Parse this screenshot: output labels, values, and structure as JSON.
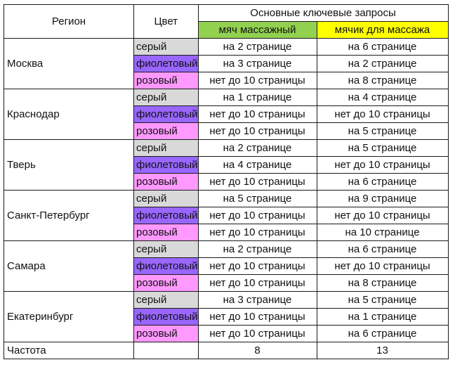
{
  "header": {
    "region_label": "Регион",
    "color_label": "Цвет",
    "queries_label": "Основные ключевые запросы",
    "kw1": "мяч массажный",
    "kw2": "мячик для массажа"
  },
  "colors": {
    "grey_swatch": "#d9d9d9",
    "violet_swatch": "#9966ff",
    "pink_swatch": "#ff99ff",
    "kw1_header": "#92d050",
    "kw2_header": "#ffff00"
  },
  "regions": [
    {
      "name": "Москва",
      "rows": [
        {
          "color": "серый",
          "kw1": "на 2 странице",
          "kw2": "на 6 странице"
        },
        {
          "color": "фиолетовый",
          "kw1": "на 3 странице",
          "kw2": "на 2 странице"
        },
        {
          "color": "розовый",
          "kw1": "нет до 10 страницы",
          "kw2": "на 8 странице"
        }
      ]
    },
    {
      "name": "Краснодар",
      "rows": [
        {
          "color": "серый",
          "kw1": "на 1 странице",
          "kw2": "на 4 странице"
        },
        {
          "color": "фиолетовый",
          "kw1": "нет до 10 страницы",
          "kw2": "нет до 10 страницы"
        },
        {
          "color": "розовый",
          "kw1": "нет до 10 страницы",
          "kw2": "на 5 странице"
        }
      ]
    },
    {
      "name": "Тверь",
      "rows": [
        {
          "color": "серый",
          "kw1": "на 2 странице",
          "kw2": "на 5 странице"
        },
        {
          "color": "фиолетовый",
          "kw1": "на 4 странице",
          "kw2": "нет до 10 страницы"
        },
        {
          "color": "розовый",
          "kw1": "нет до 10 страницы",
          "kw2": "на 6 странице"
        }
      ]
    },
    {
      "name": "Санкт-Петербург",
      "rows": [
        {
          "color": "серый",
          "kw1": "на 5 странице",
          "kw2": "на 9 странице"
        },
        {
          "color": "фиолетовый",
          "kw1": "нет до 10 страницы",
          "kw2": "нет до 10 страницы"
        },
        {
          "color": "розовый",
          "kw1": "нет до 10 страницы",
          "kw2": "на 10 странице"
        }
      ]
    },
    {
      "name": "Самара",
      "rows": [
        {
          "color": "серый",
          "kw1": "на 2 странице",
          "kw2": "на 6 странице"
        },
        {
          "color": "фиолетовый",
          "kw1": "нет до 10 страницы",
          "kw2": "нет до 10 страницы"
        },
        {
          "color": "розовый",
          "kw1": "нет до 10 страницы",
          "kw2": "на 8 странице"
        }
      ]
    },
    {
      "name": "Екатеринбург",
      "rows": [
        {
          "color": "серый",
          "kw1": "на 3 странице",
          "kw2": "на 5 странице"
        },
        {
          "color": "фиолетовый",
          "kw1": "нет до 10 страницы",
          "kw2": "на 1 странице"
        },
        {
          "color": "розовый",
          "kw1": "нет до 10 страницы",
          "kw2": "на 6 странице"
        }
      ]
    }
  ],
  "footer": {
    "label": "Частота",
    "kw1_value": "8",
    "kw2_value": "13"
  }
}
